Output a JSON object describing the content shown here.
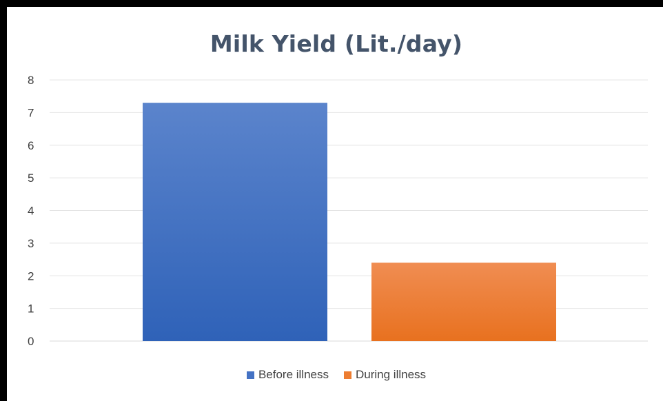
{
  "chart_data": {
    "type": "bar",
    "title": "Milk Yield (Lit./day)",
    "xlabel": "",
    "ylabel": "",
    "ylim": [
      0,
      8
    ],
    "yticks": [
      0,
      1,
      2,
      3,
      4,
      5,
      6,
      7,
      8
    ],
    "grid": true,
    "legend_position": "bottom",
    "series": [
      {
        "name": "Before illness",
        "value": 7.3,
        "color": "#4472c4"
      },
      {
        "name": "During illness",
        "value": 2.4,
        "color": "#ed7d31"
      }
    ]
  }
}
